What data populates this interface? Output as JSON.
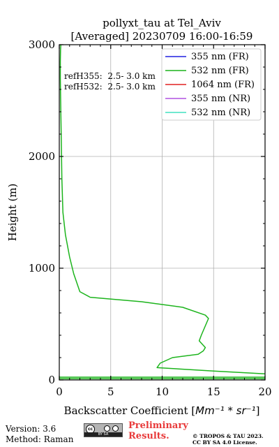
{
  "chart_data": {
    "type": "line",
    "title_line1": "pollyxt_tau at Tel_Aviv",
    "title_line2": "[Averaged] 20230709 16:00-16:59",
    "xlabel_text": "Backscatter Coefficient [",
    "xlabel_math": "Mm⁻¹ * sr⁻¹",
    "xlabel_close": "]",
    "ylabel": "Height (m)",
    "xlim": [
      0,
      20
    ],
    "ylim": [
      0,
      3000
    ],
    "xticks": [
      0,
      5,
      10,
      15,
      20
    ],
    "yticks": [
      0,
      1000,
      2000,
      3000
    ],
    "grid": true,
    "legend_position": "top-right",
    "annotations": [
      "refH355:  2.5- 3.0 km",
      "refH532:  2.5- 3.0 km"
    ],
    "series": [
      {
        "name": "355 nm (FR)",
        "color": "#2020e0",
        "x": [],
        "y": []
      },
      {
        "name": "532 nm (FR)",
        "color": "#1cb41c",
        "x": [
          20,
          15,
          9.5,
          9.8,
          11,
          13.5,
          14,
          14.2,
          13.6,
          13.8,
          14.5,
          14.2,
          12,
          8,
          3,
          2,
          1.4,
          1.0,
          0.6,
          0.35,
          0.25,
          0.2,
          0.15,
          0.1,
          0.1,
          0.12,
          0.15
        ],
        "y": [
          55,
          80,
          110,
          150,
          200,
          230,
          260,
          290,
          350,
          400,
          550,
          580,
          650,
          700,
          740,
          790,
          950,
          1100,
          1300,
          1500,
          1800,
          2100,
          2400,
          2700,
          2850,
          2950,
          3000
        ]
      },
      {
        "name": "1064 nm (FR)",
        "color": "#e02020",
        "x": [],
        "y": []
      },
      {
        "name": "355 nm (NR)",
        "color": "#b050e0",
        "x": [],
        "y": []
      },
      {
        "name": "532 nm (NR)",
        "color": "#40e0c0",
        "x": [],
        "y": []
      }
    ],
    "extra_532_lines": [
      {
        "x": [
          0,
          20
        ],
        "y": [
          25,
          25
        ]
      },
      {
        "x": [
          0,
          20
        ],
        "y": [
          12,
          12
        ]
      }
    ]
  },
  "footer": {
    "version": "Version: 3.6",
    "method": "Method: Raman",
    "preliminary_line1": "Preliminary",
    "preliminary_line2": "Results.",
    "copyright_line1": "© TROPOS & TAU 2023.",
    "copyright_line2": "CC BY SA 4.0 License.",
    "cc_badge_text": "BY SA"
  }
}
